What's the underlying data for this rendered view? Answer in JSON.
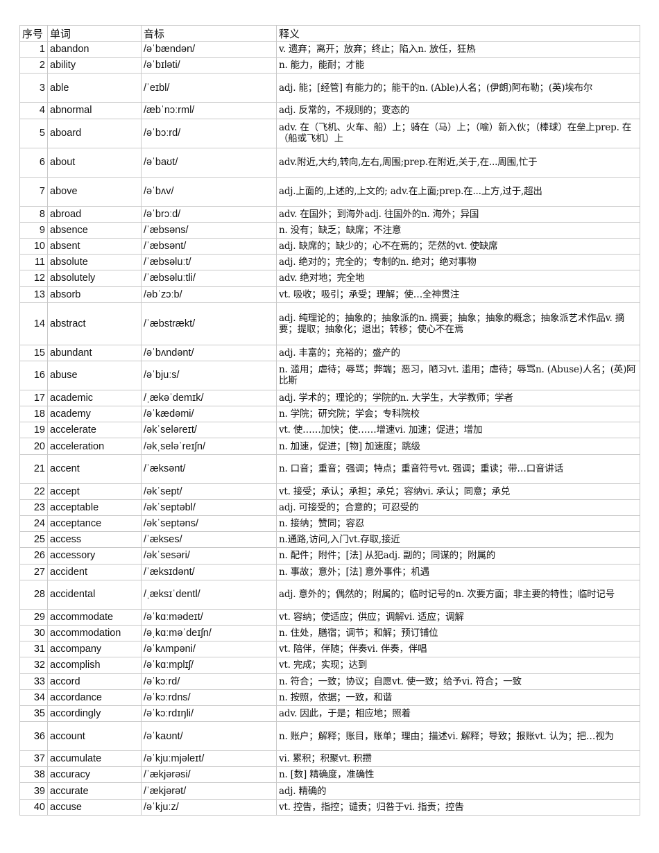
{
  "headers": [
    "序号",
    "单词",
    "音标",
    "释义"
  ],
  "rows": [
    {
      "no": "1",
      "word": "abandon",
      "phonetic": "/əˈbændən/",
      "definition": "v. 遗弃；离开；放弃；终止；陷入n. 放任，狂热"
    },
    {
      "no": "2",
      "word": "ability",
      "phonetic": "/əˈbɪləti/",
      "definition": "n. 能力，能耐；才能"
    },
    {
      "no": "3",
      "word": "able",
      "phonetic": "/ˈeɪbl/",
      "definition": "adj. 能；[经管] 有能力的；能干的n. (Able)人名；(伊朗)阿布勒；(英)埃布尔"
    },
    {
      "no": "4",
      "word": "abnormal",
      "phonetic": "/æbˈnɔːrml/",
      "definition": "adj. 反常的，不规则的；变态的"
    },
    {
      "no": "5",
      "word": "aboard",
      "phonetic": "/əˈbɔːrd/",
      "definition": "adv. 在（飞机、火车、船）上；骑在（马）上；（喻）新入伙；（棒球）在垒上prep.  在 （船或飞机）上"
    },
    {
      "no": "6",
      "word": "about",
      "phonetic": "/əˈbaʊt/",
      "definition": "adv.附近,大约,转向,左右,周围;prep.在附近,关于,在...周围,忙于"
    },
    {
      "no": "7",
      "word": "above",
      "phonetic": "/əˈbʌv/",
      "definition": "adj.上面的,上述的,上文的; adv.在上面;prep.在...上方,过于,超出"
    },
    {
      "no": "8",
      "word": "abroad",
      "phonetic": "/əˈbrɔːd/",
      "definition": "adv. 在国外；到海外adj. 往国外的n. 海外；异国"
    },
    {
      "no": "9",
      "word": "absence",
      "phonetic": "/ˈæbsəns/",
      "definition": "n. 没有；缺乏；缺席；不注意"
    },
    {
      "no": "10",
      "word": "absent",
      "phonetic": "/ˈæbsənt/",
      "definition": "adj. 缺席的；缺少的；心不在焉的；茫然的vt. 使缺席"
    },
    {
      "no": "11",
      "word": "absolute",
      "phonetic": "/ˈæbsəluːt/",
      "definition": "adj. 绝对的；完全的；专制的n. 绝对；绝对事物"
    },
    {
      "no": "12",
      "word": "absolutely",
      "phonetic": "/ˈæbsəluːtli/",
      "definition": "adv. 绝对地；完全地"
    },
    {
      "no": "13",
      "word": "absorb",
      "phonetic": "/əbˈzɔːb/",
      "definition": "vt. 吸收；吸引；承受；理解；使…全神贯注"
    },
    {
      "no": "14",
      "word": "abstract",
      "phonetic": "/ˈæbstrækt/",
      "definition": "adj. 纯理论的；抽象的；抽象派的n. 摘要；抽象；抽象的概念；抽象派艺术作品v. 摘要；提取；抽象化；退出；转移；使心不在焉"
    },
    {
      "no": "15",
      "word": "abundant",
      "phonetic": "/əˈbʌndənt/",
      "definition": "adj. 丰富的；充裕的；盛产的"
    },
    {
      "no": "16",
      "word": "abuse",
      "phonetic": "/əˈbjuːs/",
      "definition": "n. 滥用；虐待；辱骂；弊端；恶习，陋习vt. 滥用；虐待；辱骂n. (Abuse)人名；(英)阿比斯"
    },
    {
      "no": "17",
      "word": "academic",
      "phonetic": "/ˌækəˈdemɪk/",
      "definition": "adj. 学术的；理论的；学院的n. 大学生，大学教师；学者"
    },
    {
      "no": "18",
      "word": "academy",
      "phonetic": "/əˈkædəmi/",
      "definition": "n. 学院；研究院；学会；专科院校"
    },
    {
      "no": "19",
      "word": "accelerate",
      "phonetic": "/əkˈseləreɪt/",
      "definition": "vt. 使……加快；使……增速vi. 加速；促进；增加"
    },
    {
      "no": "20",
      "word": "acceleration",
      "phonetic": "/əkˌseləˈreɪʃn/",
      "definition": "n. 加速，促进；[物] 加速度；跳级"
    },
    {
      "no": "21",
      "word": "accent",
      "phonetic": "/ˈæksənt/",
      "definition": "n. 口音；重音；强调；特点；重音符号vt. 强调；重读；带…口音讲话"
    },
    {
      "no": "22",
      "word": "accept",
      "phonetic": "/əkˈsept/",
      "definition": "vt. 接受；承认；承担；承兑；容纳vi. 承认；同意；承兑"
    },
    {
      "no": "23",
      "word": "acceptable",
      "phonetic": "/əkˈseptəbl/",
      "definition": "adj. 可接受的；合意的；可忍受的"
    },
    {
      "no": "24",
      "word": "acceptance",
      "phonetic": "/əkˈseptəns/",
      "definition": "n. 接纳；赞同；容忍"
    },
    {
      "no": "25",
      "word": "access",
      "phonetic": "/ˈækses/",
      "definition": "n.通路,访问,入门vt.存取,接近"
    },
    {
      "no": "26",
      "word": "accessory",
      "phonetic": "/əkˈsesəri/",
      "definition": "n. 配件；附件；[法] 从犯adj. 副的；同谋的；附属的"
    },
    {
      "no": "27",
      "word": "accident",
      "phonetic": "/ˈæksɪdənt/",
      "definition": "n. 事故；意外；[法] 意外事件；机遇"
    },
    {
      "no": "28",
      "word": "accidental",
      "phonetic": "/ˌæksɪˈdentl/",
      "definition": "adj. 意外的；偶然的；附属的；临时记号的n. 次要方面；非主要的特性；临时记号"
    },
    {
      "no": "29",
      "word": "accommodate",
      "phonetic": "/əˈkɑːmədeɪt/",
      "definition": "vt. 容纳；使适应；供应；调解vi. 适应；调解"
    },
    {
      "no": "30",
      "word": "accommodation",
      "phonetic": "/əˌkɑːməˈdeɪʃn/",
      "definition": "n. 住处，膳宿；调节；和解；预订铺位"
    },
    {
      "no": "31",
      "word": "accompany",
      "phonetic": "/əˈkʌmpəni/",
      "definition": "vt. 陪伴，伴随；伴奏vi. 伴奏，伴唱"
    },
    {
      "no": "32",
      "word": "accomplish",
      "phonetic": "/əˈkɑːmplɪʃ/",
      "definition": "vt. 完成；实现；达到"
    },
    {
      "no": "33",
      "word": "accord",
      "phonetic": "/əˈkɔːrd/",
      "definition": "n. 符合；一致；协议；自愿vt. 使一致；给予vi. 符合；一致"
    },
    {
      "no": "34",
      "word": "accordance",
      "phonetic": "/əˈkɔːrdns/",
      "definition": "n. 按照，依据；一致，和谐"
    },
    {
      "no": "35",
      "word": "accordingly",
      "phonetic": "/əˈkɔːrdɪŋli/",
      "definition": "adv. 因此，于是；相应地；照着"
    },
    {
      "no": "36",
      "word": "account",
      "phonetic": "/əˈkaʊnt/",
      "definition": "n. 账户；解释；账目，账单；理由；描述vi. 解释；导致；报账vt. 认为；把…视为"
    },
    {
      "no": "37",
      "word": "accumulate",
      "phonetic": "/əˈkjuːmjəleɪt/",
      "definition": "vi. 累积；积聚vt. 积攒"
    },
    {
      "no": "38",
      "word": "accuracy",
      "phonetic": "/ˈækjərəsi/",
      "definition": "n. [数] 精确度，准确性"
    },
    {
      "no": "39",
      "word": "accurate",
      "phonetic": "/ˈækjərət/",
      "definition": "adj. 精确的"
    },
    {
      "no": "40",
      "word": "accuse",
      "phonetic": "/əˈkjuːz/",
      "definition": "vt. 控告，指控；谴责；归咎于vi. 指责；控告"
    }
  ]
}
